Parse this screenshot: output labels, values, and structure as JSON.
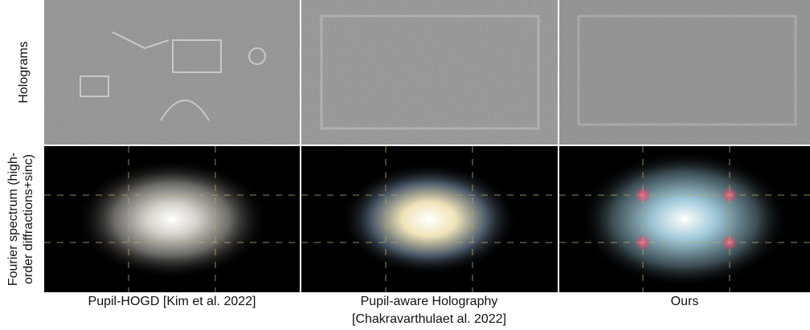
{
  "row_labels": {
    "holograms": "Holograms",
    "spectrum": [
      "Fourier spectrum (high-",
      "order diffractions+sinc)"
    ]
  },
  "columns": [
    {
      "caption": [
        "Pupil-HOGD [Kim et al. 2022]"
      ]
    },
    {
      "caption": [
        "Pupil-aware Holography",
        "[Chakravarthulaet al. 2022]"
      ]
    },
    {
      "caption": [
        "Ours"
      ]
    }
  ]
}
